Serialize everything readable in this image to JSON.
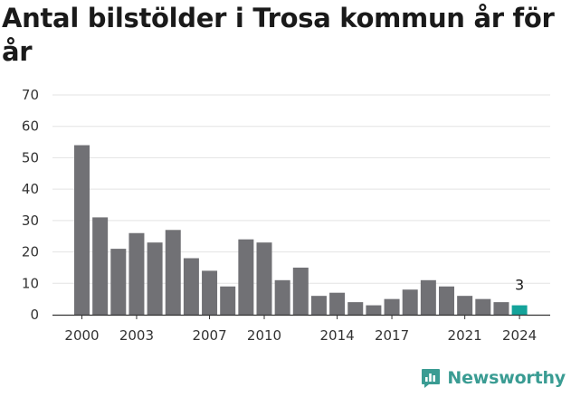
{
  "chart_data": {
    "type": "bar",
    "title": "Antal bilstölder i Trosa kommun år för år",
    "categories": [
      "2000",
      "2001",
      "2002",
      "2003",
      "2004",
      "2005",
      "2006",
      "2007",
      "2008",
      "2009",
      "2010",
      "2011",
      "2012",
      "2013",
      "2014",
      "2015",
      "2016",
      "2017",
      "2018",
      "2019",
      "2020",
      "2021",
      "2022",
      "2023",
      "2024"
    ],
    "values": [
      54,
      31,
      21,
      26,
      23,
      27,
      18,
      14,
      9,
      24,
      23,
      11,
      15,
      6,
      7,
      4,
      3,
      5,
      8,
      11,
      9,
      6,
      5,
      4,
      3
    ],
    "x_tick_labels": [
      "2000",
      "2003",
      "2007",
      "2010",
      "2014",
      "2017",
      "2021",
      "2024"
    ],
    "y_ticks": [
      0,
      10,
      20,
      30,
      40,
      50,
      60,
      70
    ],
    "ylim": [
      0,
      70
    ],
    "grid": true,
    "highlight": {
      "category": "2024",
      "label": "3"
    },
    "colors": {
      "bar": "#717175",
      "highlight": "#14a39a",
      "grid": "#e3e3e3",
      "axis": "#333333"
    }
  },
  "brand": {
    "name": "Newsworthy",
    "icon": "newsworthy-logo-icon",
    "color": "#3a9c93"
  }
}
